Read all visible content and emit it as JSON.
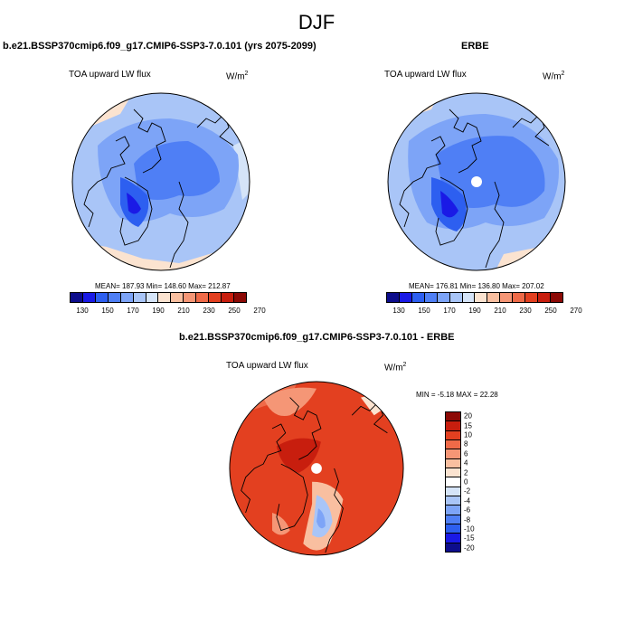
{
  "main_title": "DJF",
  "panel1": {
    "title": "b.e21.BSSP370cmip6.f09_g17.CMIP6-SSP3-7.0.101 (yrs 2075-2099)",
    "variable": "TOA upward LW flux",
    "units": "W/m",
    "units_exp": "2",
    "stats": "MEAN= 187.93  Min= 148.60  Max= 212.87"
  },
  "panel2": {
    "title": "ERBE",
    "variable": "TOA upward LW flux",
    "units": "W/m",
    "units_exp": "2",
    "stats": "MEAN= 176.81  Min= 136.80  Max= 207.02"
  },
  "panel3": {
    "title": "b.e21.BSSP370cmip6.f09_g17.CMIP6-SSP3-7.0.101 - ERBE",
    "variable": "TOA upward LW flux",
    "units": "W/m",
    "units_exp": "2",
    "stats": "MIN =  -5.18 MAX =  22.28"
  },
  "abs_colorbar": {
    "colors": [
      "#0d0d8c",
      "#1a1ae6",
      "#2d5ff0",
      "#4f7ff5",
      "#7da4f7",
      "#a9c5f7",
      "#d5e4f8",
      "#fbe3d0",
      "#f9bfa0",
      "#f59676",
      "#ef6a48",
      "#e34020",
      "#c81e0e",
      "#8c0a06"
    ],
    "tick_labels": [
      "130",
      "150",
      "170",
      "190",
      "210",
      "230",
      "250",
      "270"
    ]
  },
  "diff_colorbar": {
    "colors": [
      "#8c0a06",
      "#c81e0e",
      "#e34020",
      "#ef6a48",
      "#f59676",
      "#f9bfa0",
      "#fbe3d0",
      "#ffffff",
      "#d5e4f8",
      "#a9c5f7",
      "#7da4f7",
      "#4f7ff5",
      "#2d5ff0",
      "#1a1ae6",
      "#0d0d8c"
    ],
    "tick_labels": [
      "20",
      "15",
      "10",
      "8",
      "6",
      "4",
      "2",
      "0",
      "-2",
      "-4",
      "-6",
      "-8",
      "-10",
      "-15",
      "-20"
    ]
  }
}
